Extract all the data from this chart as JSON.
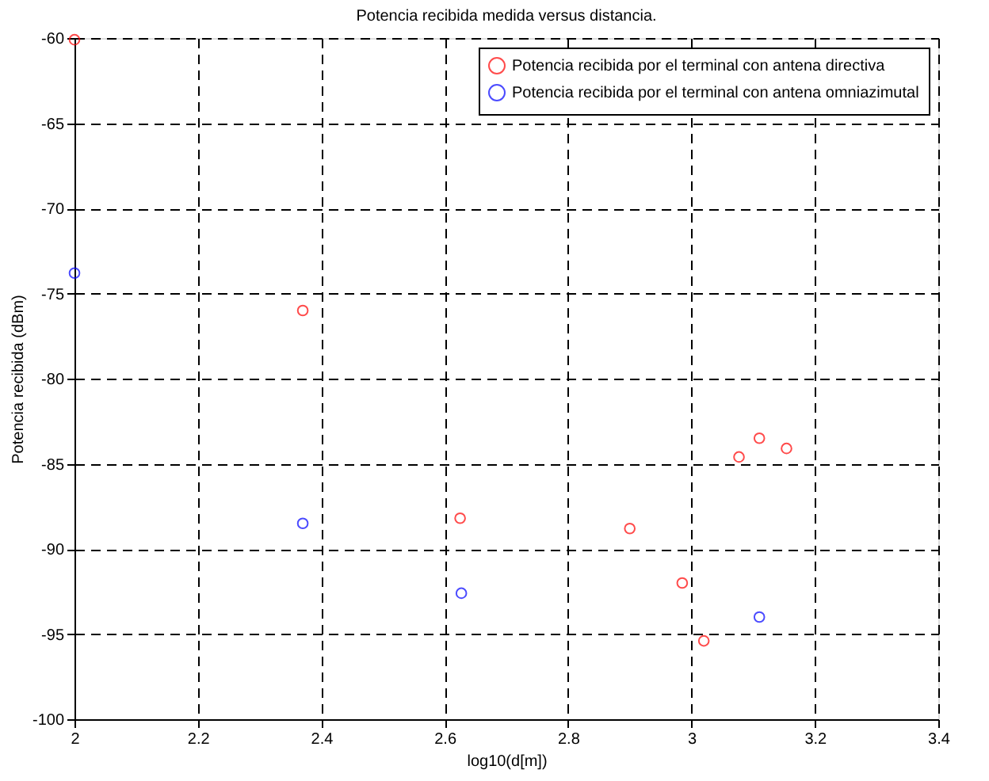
{
  "chart_data": {
    "type": "scatter",
    "title": "Potencia recibida medida versus distancia.",
    "xlabel": "log10(d[m])",
    "ylabel": "Potencia recibida (dBm)",
    "series": [
      {
        "name": "Potencia recibida por el terminal con antena directiva",
        "color": "#ff0000",
        "x": [
          2.0,
          2.37,
          2.625,
          2.9,
          2.985,
          3.02,
          3.077,
          3.11,
          3.154
        ],
        "values": [
          -60.1,
          -76.0,
          -88.2,
          -88.8,
          -92.0,
          -95.4,
          -84.6,
          -83.5,
          -84.1
        ]
      },
      {
        "name": "Potencia recibida por el terminal con antena omniazimutal",
        "color": "#0000ff",
        "x": [
          2.0,
          2.37,
          2.627,
          3.11
        ],
        "values": [
          -73.8,
          -88.5,
          -92.6,
          -94.0
        ]
      }
    ],
    "xlim": [
      2,
      3.4
    ],
    "xticks": [
      2,
      2.2,
      2.4,
      2.6,
      2.8,
      3,
      3.2,
      3.4
    ],
    "ylim": [
      -100,
      -60
    ],
    "yticks": [
      -100,
      -95,
      -90,
      -85,
      -80,
      -75,
      -70,
      -65,
      -60
    ],
    "grid": true,
    "legend": "top right",
    "marker": "circle"
  }
}
